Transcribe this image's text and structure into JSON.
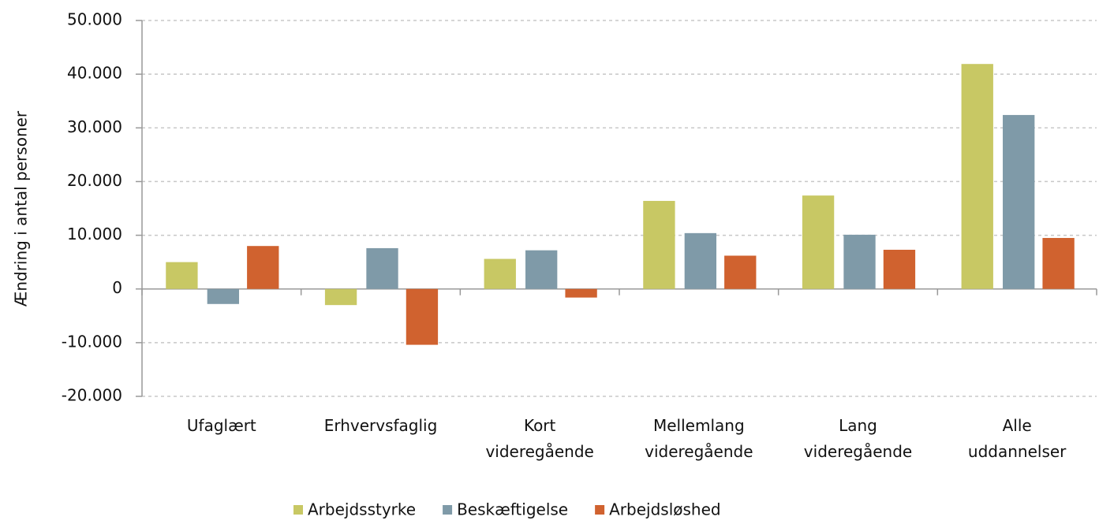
{
  "chart_data": {
    "type": "bar",
    "y_label": "Ændring i antal personer",
    "categories": [
      "Ufaglært",
      "Erhvervsfaglig",
      "Kort videregående",
      "Mellemlang videregående",
      "Lang videregående",
      "Alle uddannelser"
    ],
    "series": [
      {
        "name": "Arbejdsstyrke",
        "color": "#c8c864",
        "values": [
          5000,
          -3000,
          5600,
          16400,
          17400,
          41900
        ]
      },
      {
        "name": "Beskæftigelse",
        "color": "#7f9aa8",
        "values": [
          -2800,
          7600,
          7200,
          10400,
          10100,
          32400
        ]
      },
      {
        "name": "Arbejdsløshed",
        "color": "#d0622f",
        "values": [
          8000,
          -10400,
          -1600,
          6200,
          7300,
          9500
        ]
      }
    ],
    "ylim": [
      -20000,
      50000
    ],
    "yticks": [
      {
        "value": -20000,
        "label": "-20.000"
      },
      {
        "value": -10000,
        "label": "-10.000"
      },
      0,
      {
        "value": 10000,
        "label": "10.000"
      },
      {
        "value": 20000,
        "label": "20.000"
      },
      {
        "value": 30000,
        "label": "30.000"
      },
      {
        "value": 40000,
        "label": "40.000"
      },
      {
        "value": 50000,
        "label": "50.000"
      }
    ],
    "grid": true
  }
}
